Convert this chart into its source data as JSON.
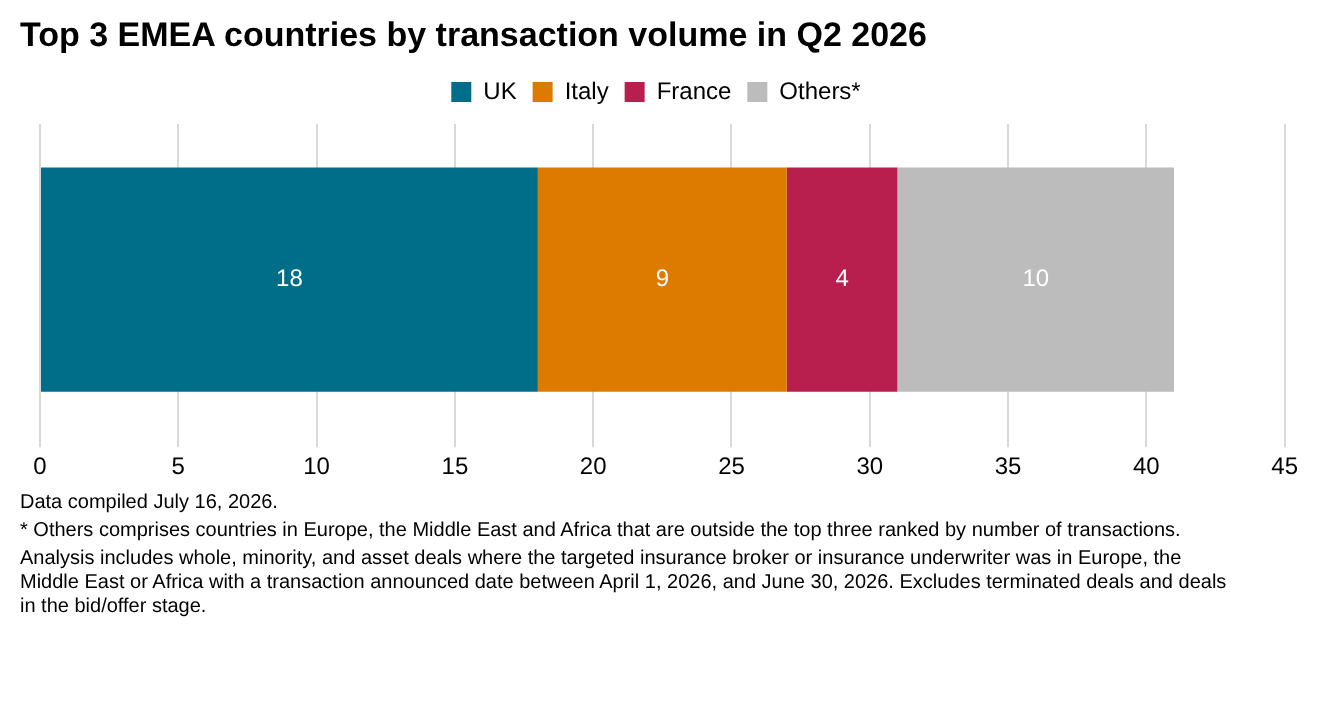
{
  "chart_data": {
    "type": "bar",
    "title": "Top 3 EMEA countries by transaction volume in Q2 2026",
    "orientation": "horizontal",
    "stacked": true,
    "categories": [
      null
    ],
    "series": [
      {
        "name": "UK",
        "color": "#006d89",
        "values": [
          18
        ]
      },
      {
        "name": "Italy",
        "color": "#dd7a00",
        "values": [
          9
        ]
      },
      {
        "name": "France",
        "color": "#b81f4f",
        "values": [
          4
        ]
      },
      {
        "name": "Others*",
        "color": "#bcbcbd",
        "values": [
          10
        ]
      }
    ],
    "xlim": [
      0,
      45
    ],
    "xticks": [
      0,
      5,
      10,
      15,
      20,
      25,
      30,
      35,
      40,
      45
    ],
    "grid": "x",
    "legend": "top",
    "tick_labels": "x",
    "data_labels": true,
    "annotations": [
      "Data compiled July 16, 2026.",
      "* Others comprises countries in Europe, the Middle East and Africa that are outside the top three ranked by number of transactions.",
      "Analysis includes whole, minority, and asset deals where the targeted insurance broker or insurance underwriter was in Europe, the Middle East or Africa with a transaction announced date between April 1, 2026, and June 30, 2026. Excludes terminated deals and deals in the bid/offer stage."
    ]
  }
}
